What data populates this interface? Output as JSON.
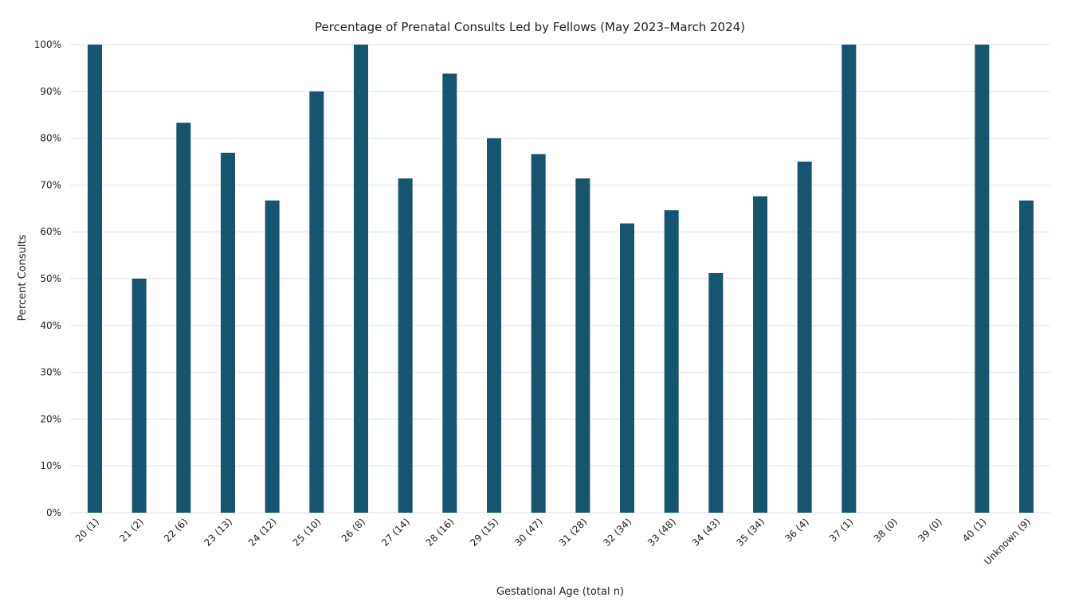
{
  "chart_data": {
    "type": "bar",
    "title": "Percentage of Prenatal Consults Led by Fellows (May 2023–March 2024)",
    "xlabel": "Gestational Age (total n)",
    "ylabel": "Percent Consults",
    "ylim": [
      0,
      100
    ],
    "yticks": [
      "0%",
      "10%",
      "20%",
      "30%",
      "40%",
      "50%",
      "60%",
      "70%",
      "80%",
      "90%",
      "100%"
    ],
    "grid": true,
    "bar_color": "#17546f",
    "categories": [
      "20 (1)",
      "21 (2)",
      "22 (6)",
      "23 (13)",
      "24 (12)",
      "25 (10)",
      "26 (8)",
      "27 (14)",
      "28 (16)",
      "29 (15)",
      "30 (47)",
      "31 (28)",
      "32 (34)",
      "33 (48)",
      "34 (43)",
      "35 (34)",
      "36 (4)",
      "37 (1)",
      "38 (0)",
      "39 (0)",
      "40 (1)",
      "Unknown (9)"
    ],
    "values": [
      100,
      50,
      83.3,
      76.9,
      66.7,
      90,
      100,
      71.4,
      93.8,
      80,
      76.6,
      71.4,
      61.8,
      64.6,
      51.2,
      67.6,
      75,
      100,
      0,
      0,
      100,
      66.7
    ]
  }
}
